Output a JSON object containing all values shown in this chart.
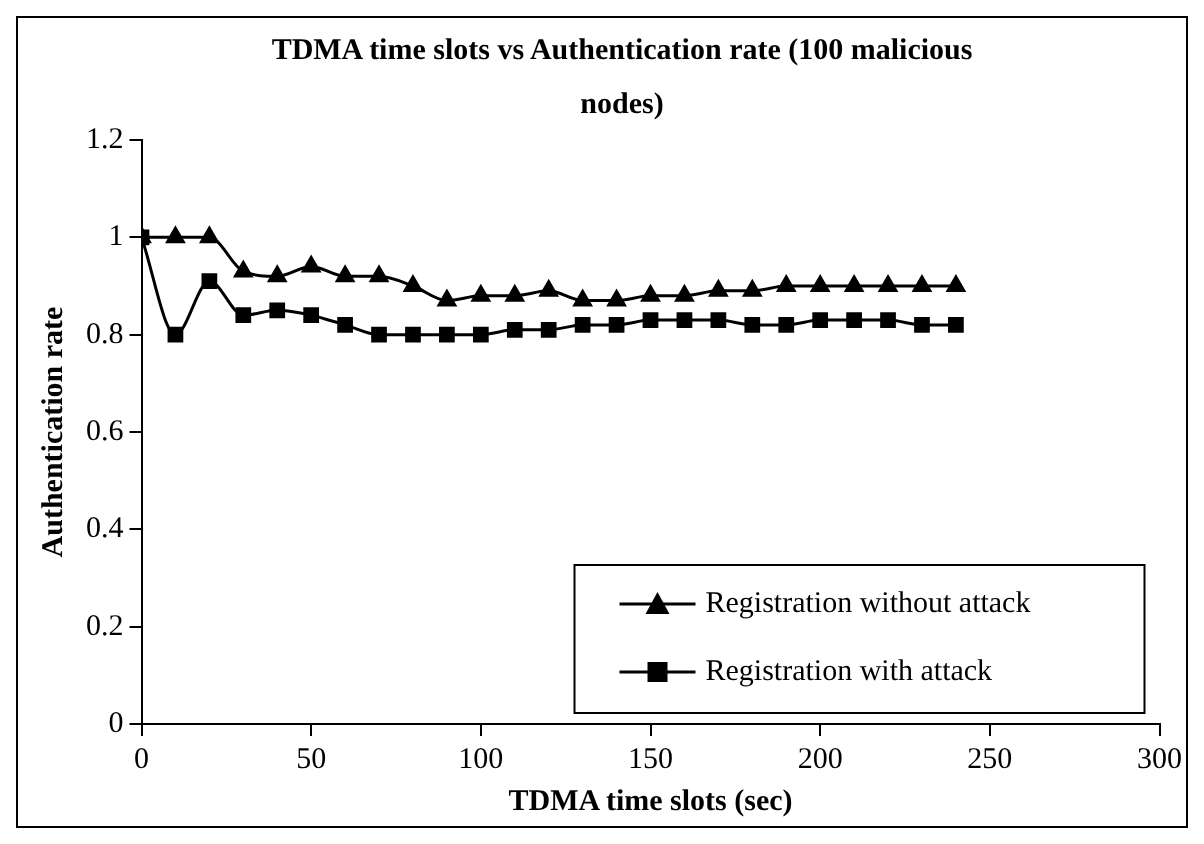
{
  "chart_data": {
    "type": "line",
    "title": "TDMA time slots vs Authentication rate (100 malicious nodes)",
    "xlabel": "TDMA time slots (sec)",
    "ylabel": "Authentication rate",
    "x": [
      0,
      10,
      20,
      30,
      40,
      50,
      60,
      70,
      80,
      90,
      100,
      110,
      120,
      130,
      140,
      150,
      160,
      170,
      180,
      190,
      200,
      210,
      220,
      230,
      240
    ],
    "series": [
      {
        "name": "Registration without attack",
        "color": "#000000",
        "marker": "triangle",
        "values": [
          1,
          1,
          1,
          0.93,
          0.92,
          0.94,
          0.92,
          0.92,
          0.9,
          0.87,
          0.88,
          0.88,
          0.89,
          0.87,
          0.87,
          0.88,
          0.88,
          0.89,
          0.89,
          0.9,
          0.9,
          0.9,
          0.9,
          0.9,
          0.9
        ]
      },
      {
        "name": "Registration with attack",
        "color": "#000000",
        "marker": "square",
        "values": [
          1,
          0.8,
          0.91,
          0.84,
          0.85,
          0.84,
          0.82,
          0.8,
          0.8,
          0.8,
          0.8,
          0.81,
          0.81,
          0.82,
          0.82,
          0.83,
          0.83,
          0.83,
          0.82,
          0.82,
          0.83,
          0.83,
          0.83,
          0.82,
          0.82
        ]
      }
    ],
    "xlim": [
      0,
      300
    ],
    "xticks": [
      0,
      50,
      100,
      150,
      200,
      250,
      300
    ],
    "ylim": [
      0,
      1.2
    ],
    "yticks": [
      0,
      0.2,
      0.4,
      0.6,
      0.8,
      1,
      1.2
    ],
    "grid": false,
    "legend": "bottom right",
    "line_style": "solid"
  }
}
